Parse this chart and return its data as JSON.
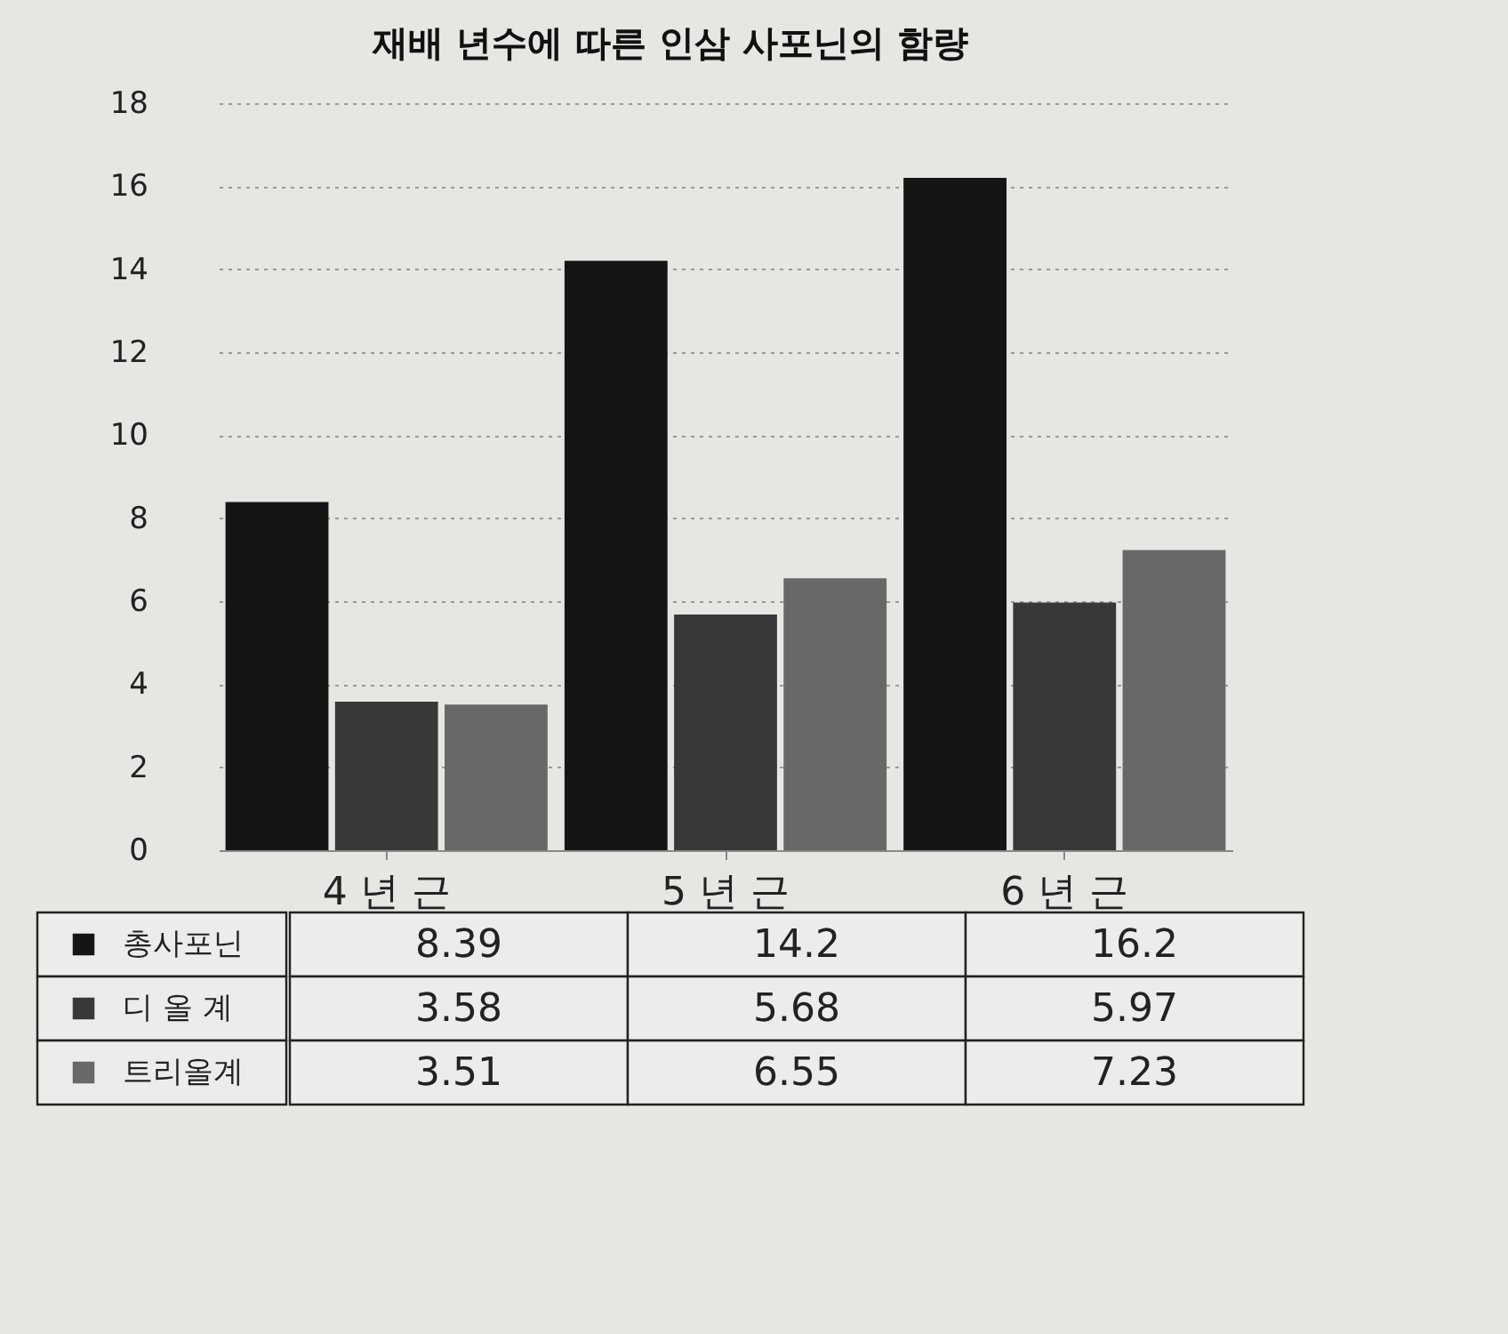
{
  "chart_data": {
    "type": "bar",
    "title": "재배 년수에 따른 인삼 사포닌의 함량",
    "categories": [
      "4 년 근",
      "5 년 근",
      "6 년 근"
    ],
    "series": [
      {
        "name": "총사포닌",
        "color": "#151515",
        "values": [
          8.39,
          14.2,
          16.2
        ]
      },
      {
        "name": "디 올 계",
        "color": "#383838",
        "values": [
          3.58,
          5.68,
          5.97
        ]
      },
      {
        "name": "트리올계",
        "color": "#686868",
        "values": [
          3.51,
          6.55,
          7.23
        ]
      }
    ],
    "ylim": [
      0,
      18
    ],
    "yticks": [
      0,
      2,
      4,
      6,
      8,
      10,
      12,
      14,
      16,
      18
    ],
    "grid": "y",
    "legend": "bottom left",
    "data_labels": true
  }
}
